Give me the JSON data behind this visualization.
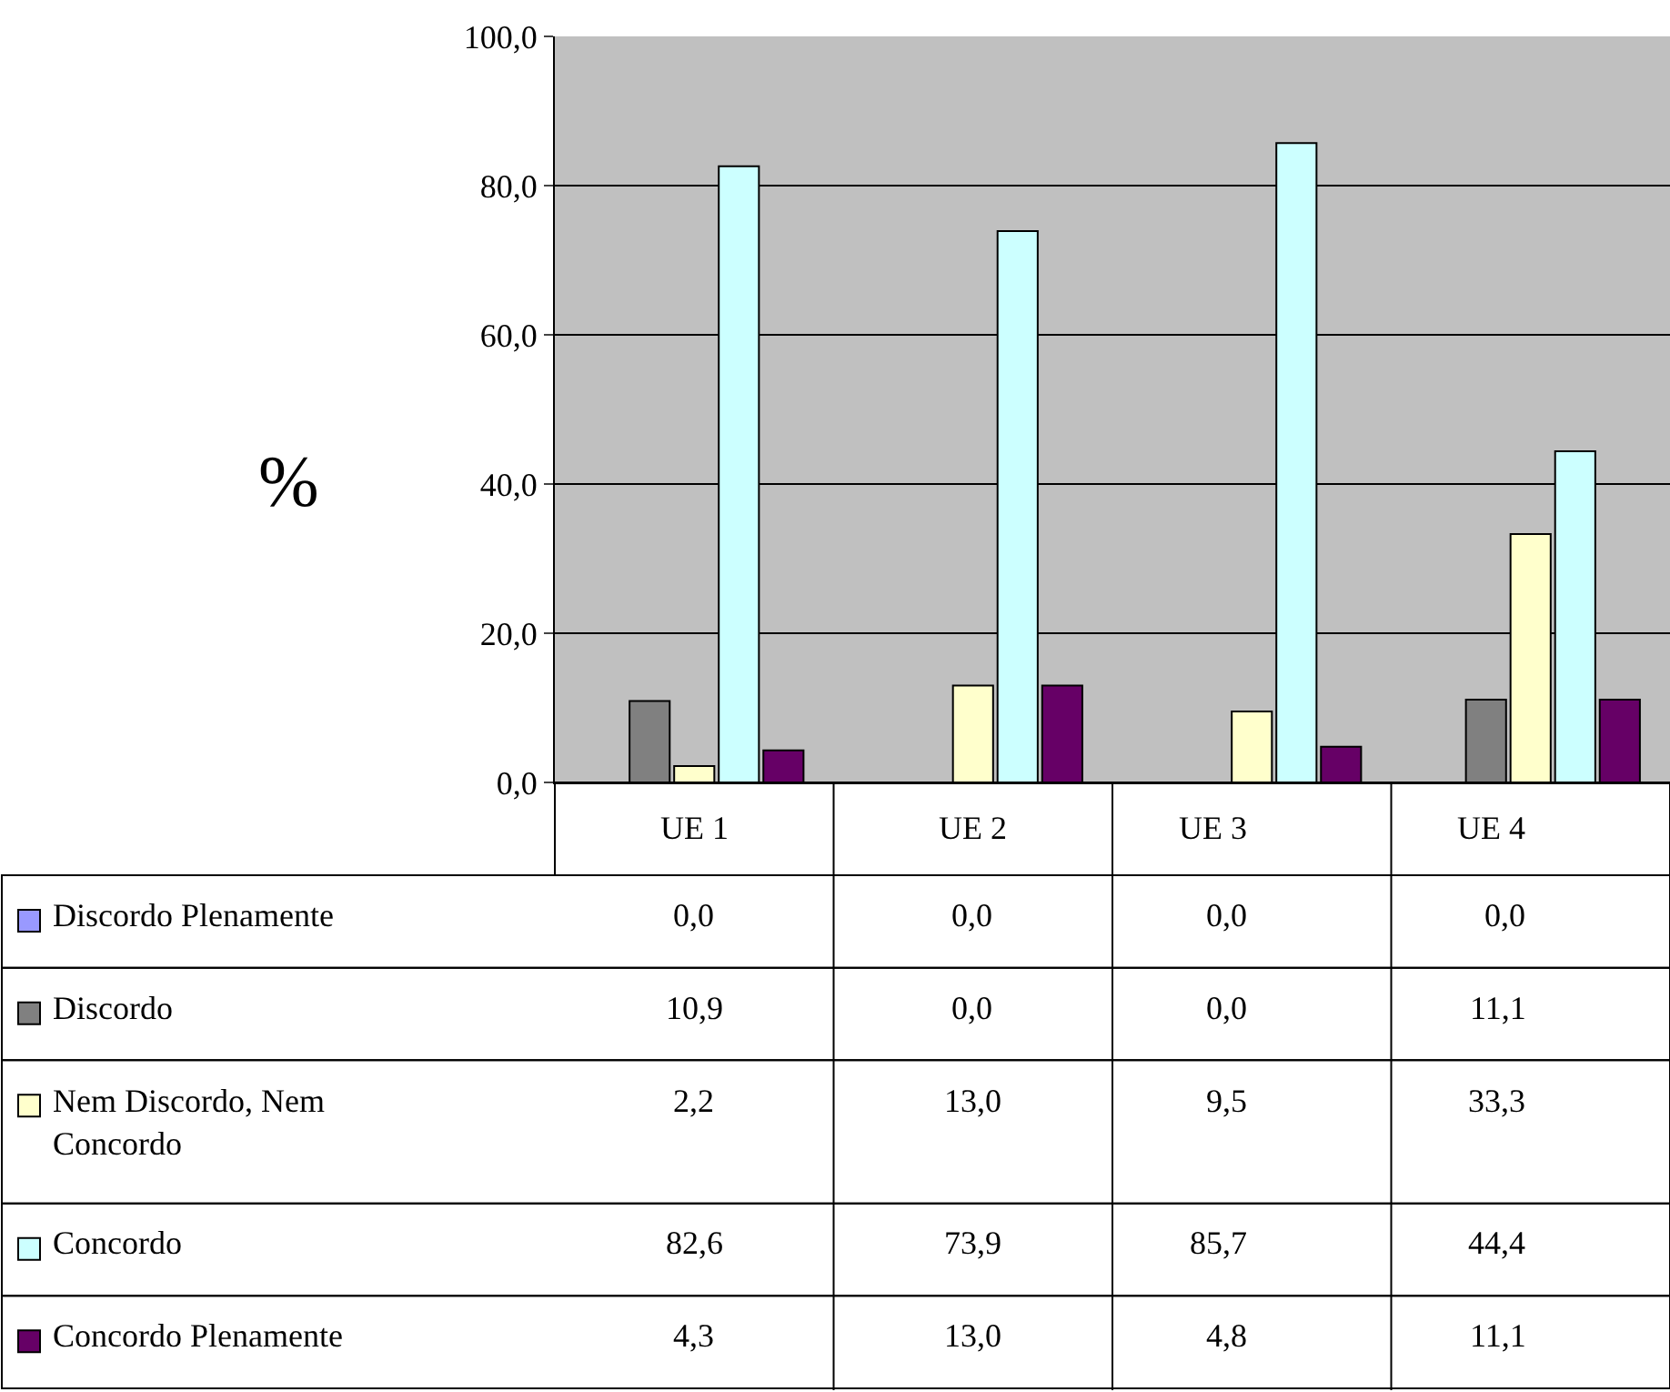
{
  "chart_data": {
    "type": "bar",
    "ylabel": "%",
    "categories": [
      "UE 1",
      "UE 2",
      "UE 3",
      "UE 4"
    ],
    "ylim": [
      0,
      100
    ],
    "yticks": [
      {
        "value": 0,
        "label": "0,0"
      },
      {
        "value": 20,
        "label": "20,0"
      },
      {
        "value": 40,
        "label": "40,0"
      },
      {
        "value": 60,
        "label": "60,0"
      },
      {
        "value": 80,
        "label": "80,0"
      },
      {
        "value": 100,
        "label": "100,0"
      }
    ],
    "grid": "y",
    "legend": "bottom left",
    "series": [
      {
        "name": "Discordo Plenamente",
        "color": "#9999ff",
        "values": [
          0.0,
          0.0,
          0.0,
          0.0
        ],
        "value_labels": [
          "0,0",
          "0,0",
          "0,0",
          "0,0"
        ]
      },
      {
        "name": "Discordo",
        "color": "#808080",
        "values": [
          10.9,
          0.0,
          0.0,
          11.1
        ],
        "value_labels": [
          "10,9",
          "0,0",
          "0,0",
          "11,1"
        ]
      },
      {
        "name": "Nem Discordo, Nem Concordo",
        "color": "#ffffcc",
        "values": [
          2.2,
          13.0,
          9.5,
          33.3
        ],
        "value_labels": [
          "2,2",
          "13,0",
          "9,5",
          "33,3"
        ]
      },
      {
        "name": "Concordo",
        "color": "#ccffff",
        "values": [
          82.6,
          73.9,
          85.7,
          44.4
        ],
        "value_labels": [
          "82,6",
          "73,9",
          "85,7",
          "44,4"
        ]
      },
      {
        "name": "Concordo Plenamente",
        "color": "#660066",
        "values": [
          4.3,
          13.0,
          4.8,
          11.1
        ],
        "value_labels": [
          "4,3",
          "13,0",
          "4,8",
          "11,1"
        ]
      }
    ]
  }
}
